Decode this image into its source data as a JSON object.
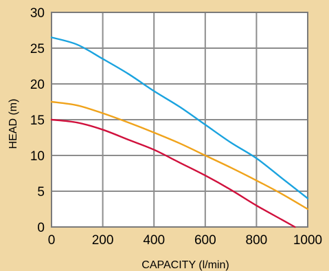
{
  "chart_data": {
    "type": "line",
    "title": "",
    "xlabel": "CAPACITY (l/min)",
    "ylabel": "HEAD (m)",
    "xlim": [
      0,
      1000
    ],
    "ylim": [
      0,
      30
    ],
    "x_ticks": [
      "0",
      "200",
      "400",
      "600",
      "800",
      "1000"
    ],
    "y_ticks": [
      "0",
      "5",
      "10",
      "15",
      "20",
      "25",
      "30"
    ],
    "grid": true,
    "series": [
      {
        "color": "#1aa3df",
        "x": [
          0,
          100,
          200,
          300,
          400,
          500,
          600,
          700,
          800,
          900,
          1000
        ],
        "y": [
          26.5,
          25.5,
          23.5,
          21.4,
          19.0,
          16.8,
          14.3,
          11.8,
          9.6,
          6.8,
          4.0
        ]
      },
      {
        "color": "#f0a31b",
        "x": [
          0,
          100,
          200,
          300,
          400,
          500,
          600,
          700,
          800,
          900,
          1000
        ],
        "y": [
          17.5,
          17.0,
          15.9,
          14.6,
          13.2,
          11.7,
          10.0,
          8.3,
          6.5,
          4.6,
          2.5
        ]
      },
      {
        "color": "#d0103c",
        "x": [
          0,
          100,
          200,
          300,
          400,
          500,
          600,
          700,
          800,
          900,
          950
        ],
        "y": [
          15.0,
          14.6,
          13.6,
          12.2,
          10.8,
          9.0,
          7.2,
          5.2,
          3.0,
          1.0,
          0.0
        ]
      }
    ]
  }
}
